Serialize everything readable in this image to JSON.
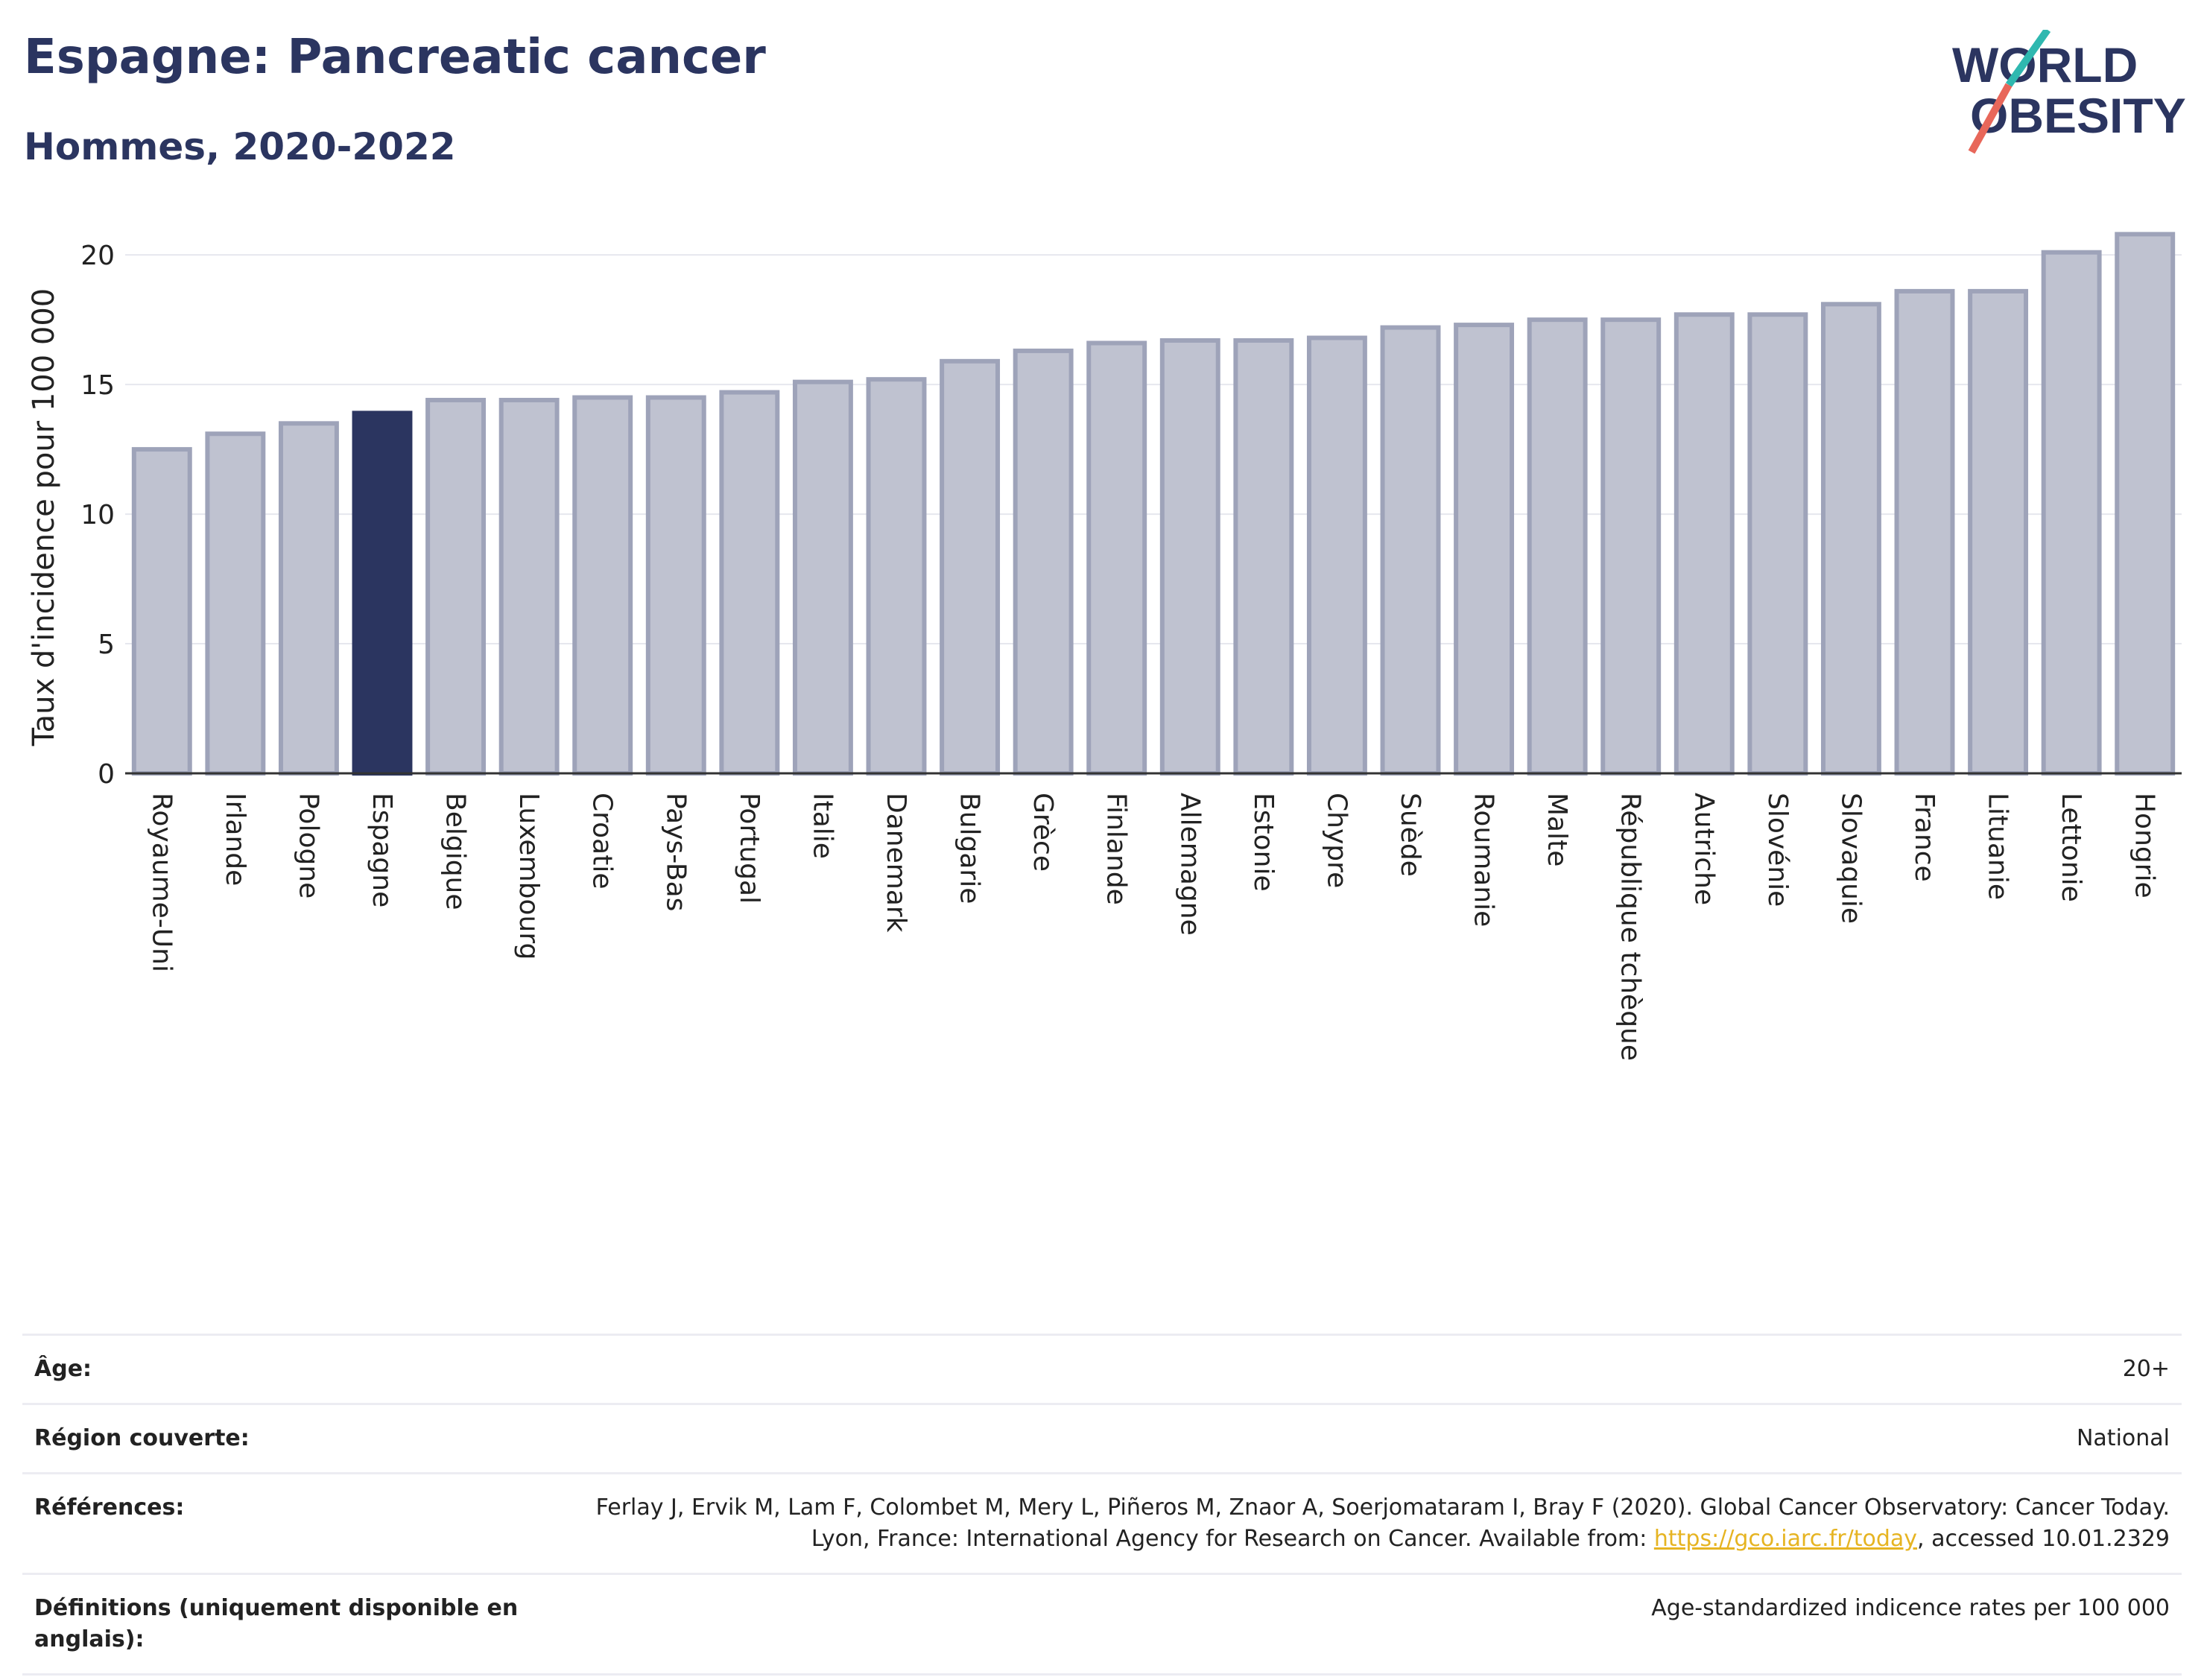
{
  "header": {
    "title": "Espagne: Pancreatic cancer",
    "subtitle": "Hommes, 2020-2022"
  },
  "logo": {
    "line1": "WORLD",
    "line2": "OBESITY"
  },
  "colors": {
    "highlight": "#2b3560",
    "bar": "#bfc2d0",
    "bar_border": "#9ea3b9",
    "title": "#2b3560",
    "link": "#e6b422"
  },
  "chart_data": {
    "type": "bar",
    "ylabel": "Taux d'incidence pour 100 000",
    "ylim": [
      0,
      21.5
    ],
    "yticks": [
      0,
      5,
      10,
      15,
      20
    ],
    "highlight": "Espagne",
    "categories": [
      "Royaume-Uni",
      "Irlande",
      "Pologne",
      "Espagne",
      "Belgique",
      "Luxembourg",
      "Croatie",
      "Pays-Bas",
      "Portugal",
      "Italie",
      "Danemark",
      "Bulgarie",
      "Grèce",
      "Finlande",
      "Allemagne",
      "Estonie",
      "Chypre",
      "Suède",
      "Roumanie",
      "Malte",
      "République tchèque",
      "Autriche",
      "Slovénie",
      "Slovaquie",
      "France",
      "Lituanie",
      "Lettonie",
      "Hongrie"
    ],
    "values": [
      12.5,
      13.1,
      13.5,
      13.9,
      14.4,
      14.4,
      14.5,
      14.5,
      14.7,
      15.1,
      15.2,
      15.9,
      16.3,
      16.6,
      16.7,
      16.7,
      16.8,
      17.2,
      17.3,
      17.5,
      17.5,
      17.7,
      17.7,
      18.1,
      18.6,
      18.6,
      20.1,
      20.8
    ],
    "grid": true
  },
  "meta": [
    {
      "label": "Âge:",
      "value": "20+"
    },
    {
      "label": "Région couverte:",
      "value": "National"
    },
    {
      "label": "Références:",
      "value": "Ferlay J, Ervik M, Lam F, Colombet M, Mery L, Piñeros M, Znaor A, Soerjomataram I, Bray F (2020). Global Cancer Observatory: Cancer Today. Lyon, France: International Agency for Research on Cancer. Available from: ",
      "link": "https://gco.iarc.fr/today",
      "suffix": ", accessed 10.01.2329"
    },
    {
      "label": "Définitions (uniquement disponible en anglais):",
      "value": "Age-standardized indicence rates per 100 000"
    }
  ]
}
